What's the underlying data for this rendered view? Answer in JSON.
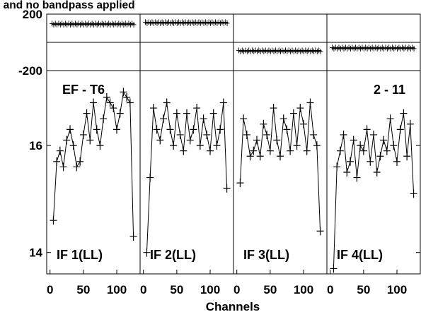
{
  "title": "l and no bandpass applied",
  "chart_data": {
    "type": "line",
    "markers": "plus",
    "title": "l and no bandpass applied",
    "xlabel": "Channels",
    "source_label": "EF - T6",
    "baseline_label": "2 - 11",
    "x_ticks": [
      "0",
      "50",
      "100"
    ],
    "xlim": [
      -5,
      135
    ],
    "phase": {
      "ylim": [
        -200,
        200
      ],
      "y_ticks": [
        "200",
        "-200"
      ],
      "zero_line": 0
    },
    "amplitude": {
      "ylim": [
        13.6,
        17.4
      ],
      "y_ticks": [
        "16",
        "14"
      ]
    },
    "panels": [
      {
        "label": "IF 1(LL)",
        "phase_value": 130,
        "amplitude": {
          "x": [
            5,
            10,
            15,
            20,
            25,
            30,
            35,
            40,
            45,
            50,
            55,
            60,
            65,
            70,
            75,
            80,
            85,
            90,
            95,
            100,
            105,
            110,
            115,
            120,
            125
          ],
          "y": [
            14.6,
            15.7,
            15.9,
            15.6,
            16.1,
            16.3,
            16.0,
            15.6,
            15.7,
            16.2,
            16.6,
            16.1,
            16.8,
            16.3,
            16.0,
            16.5,
            16.9,
            16.8,
            16.7,
            16.3,
            16.6,
            17.0,
            16.9,
            16.8,
            14.3
          ]
        }
      },
      {
        "label": "IF 2(LL)",
        "phase_value": 140,
        "amplitude": {
          "x": [
            5,
            10,
            15,
            20,
            25,
            30,
            35,
            40,
            45,
            50,
            55,
            60,
            65,
            70,
            75,
            80,
            85,
            90,
            95,
            100,
            105,
            110,
            115,
            120,
            125
          ],
          "y": [
            14.0,
            15.4,
            16.7,
            16.3,
            16.1,
            16.5,
            16.8,
            16.3,
            16.0,
            16.6,
            16.2,
            15.9,
            16.6,
            16.1,
            16.3,
            16.7,
            16.0,
            16.5,
            16.2,
            15.9,
            16.6,
            16.0,
            16.3,
            16.8,
            15.2
          ]
        }
      },
      {
        "label": "IF 3(LL)",
        "phase_value": -60,
        "amplitude": {
          "x": [
            5,
            10,
            15,
            20,
            25,
            30,
            35,
            40,
            45,
            50,
            55,
            60,
            65,
            70,
            75,
            80,
            85,
            90,
            95,
            100,
            105,
            110,
            115,
            120,
            125
          ],
          "y": [
            15.3,
            16.5,
            16.2,
            15.8,
            15.9,
            16.1,
            15.8,
            16.4,
            16.2,
            15.9,
            16.7,
            16.1,
            15.8,
            16.5,
            16.3,
            15.9,
            16.6,
            16.0,
            16.7,
            16.4,
            15.9,
            16.8,
            16.2,
            16.0,
            14.4
          ]
        }
      },
      {
        "label": "IF 4(LL)",
        "phase_value": -40,
        "amplitude": {
          "x": [
            5,
            10,
            15,
            20,
            25,
            30,
            35,
            40,
            45,
            50,
            55,
            60,
            65,
            70,
            75,
            80,
            85,
            90,
            95,
            100,
            105,
            110,
            115,
            120,
            125
          ],
          "y": [
            13.7,
            15.6,
            15.9,
            16.2,
            15.5,
            15.7,
            16.1,
            15.4,
            16.0,
            15.9,
            16.3,
            15.7,
            16.2,
            15.5,
            15.8,
            16.1,
            15.9,
            16.5,
            16.0,
            15.7,
            16.3,
            16.6,
            15.8,
            16.4,
            15.1
          ]
        }
      }
    ]
  }
}
